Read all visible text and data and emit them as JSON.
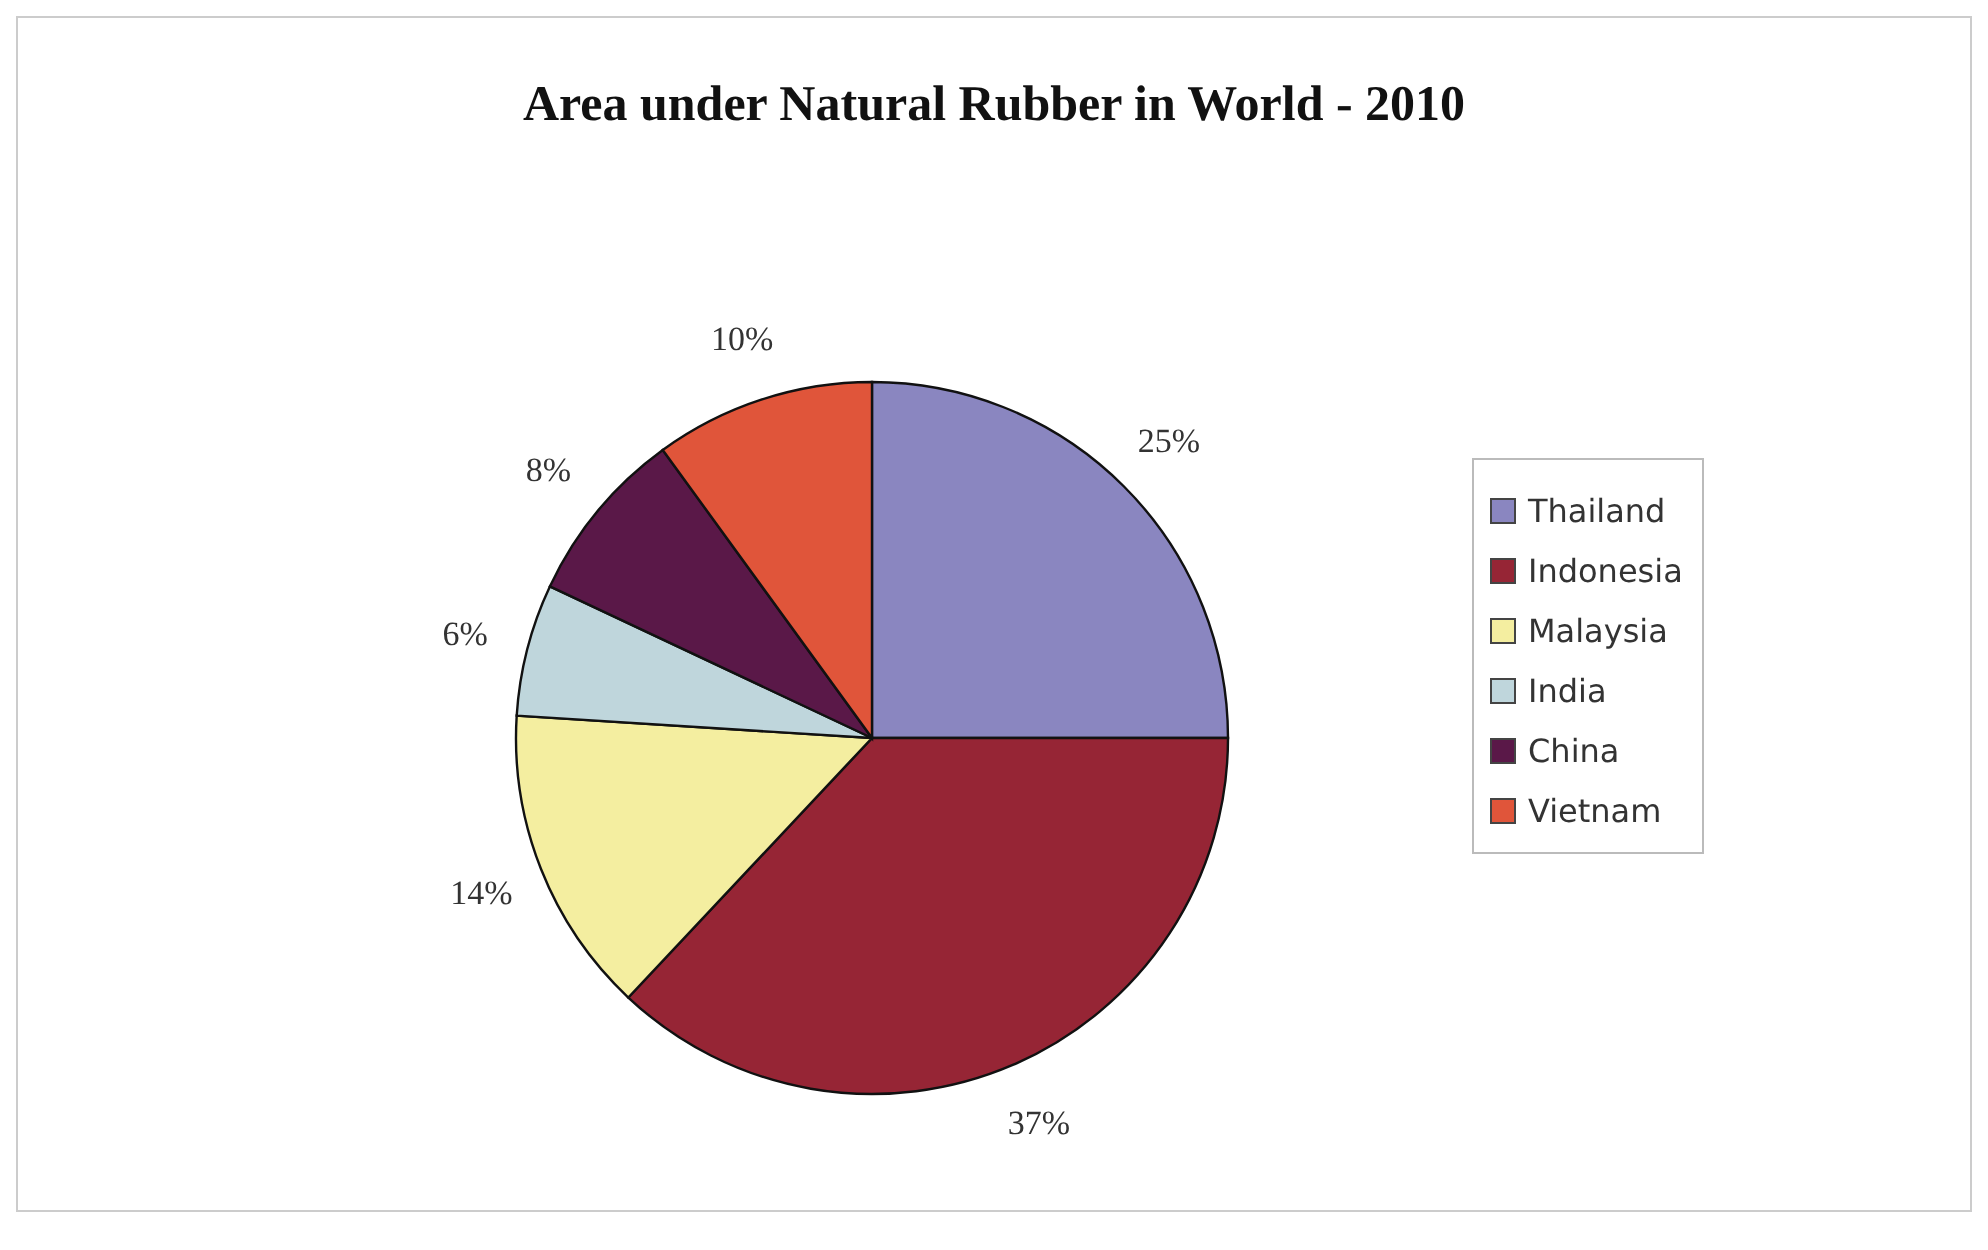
{
  "chart_data": {
    "type": "pie",
    "title": "Area under Natural Rubber in World - 2010",
    "categories": [
      "Thailand",
      "Indonesia",
      "Malaysia",
      "India",
      "China",
      "Vietnam"
    ],
    "values": [
      25,
      37,
      14,
      6,
      8,
      10
    ],
    "value_labels": [
      "25%",
      "37%",
      "14%",
      "6%",
      "8%",
      "10%"
    ],
    "colors": [
      "#8a86c0",
      "#962535",
      "#f4eea0",
      "#bfd6dc",
      "#5a1848",
      "#e0553a"
    ],
    "legend": "right"
  }
}
